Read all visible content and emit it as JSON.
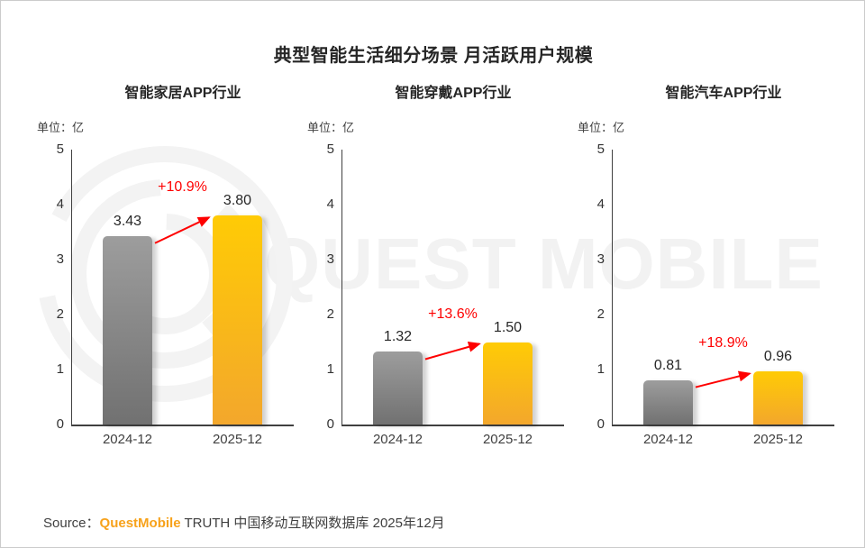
{
  "title": "典型智能生活细分场景 月活跃用户规模",
  "watermark": {
    "text": "QUEST MOBILE"
  },
  "footer": {
    "source_label": "Source：",
    "brand": "QuestMobile",
    "rest": " TRUTH 中国移动互联网数据库 2025年12月"
  },
  "colors": {
    "growth_red": "#fe0000",
    "bar_gray": "#8f8f8f",
    "bar_yellow": "#ffc000",
    "brand_orange": "#f7a21b",
    "axis": "#404040",
    "watermark_gray": "#f2f2f2"
  },
  "chart_data": {
    "type": "bar",
    "unit_label": "单位：亿",
    "categories": [
      "2024-12",
      "2025-12"
    ],
    "ylim": [
      0,
      5
    ],
    "yticks": [
      0,
      1,
      2,
      3,
      4,
      5
    ],
    "charts": [
      {
        "title": "智能家居APP行业",
        "values": [
          3.43,
          3.8
        ],
        "value_labels": [
          "3.43",
          "3.80"
        ],
        "growth_label": "+10.9%"
      },
      {
        "title": "智能穿戴APP行业",
        "values": [
          1.32,
          1.5
        ],
        "value_labels": [
          "1.32",
          "1.50"
        ],
        "growth_label": "+13.6%"
      },
      {
        "title": "智能汽车APP行业",
        "values": [
          0.81,
          0.96
        ],
        "value_labels": [
          "0.81",
          "0.96"
        ],
        "growth_label": "+18.9%"
      }
    ]
  }
}
